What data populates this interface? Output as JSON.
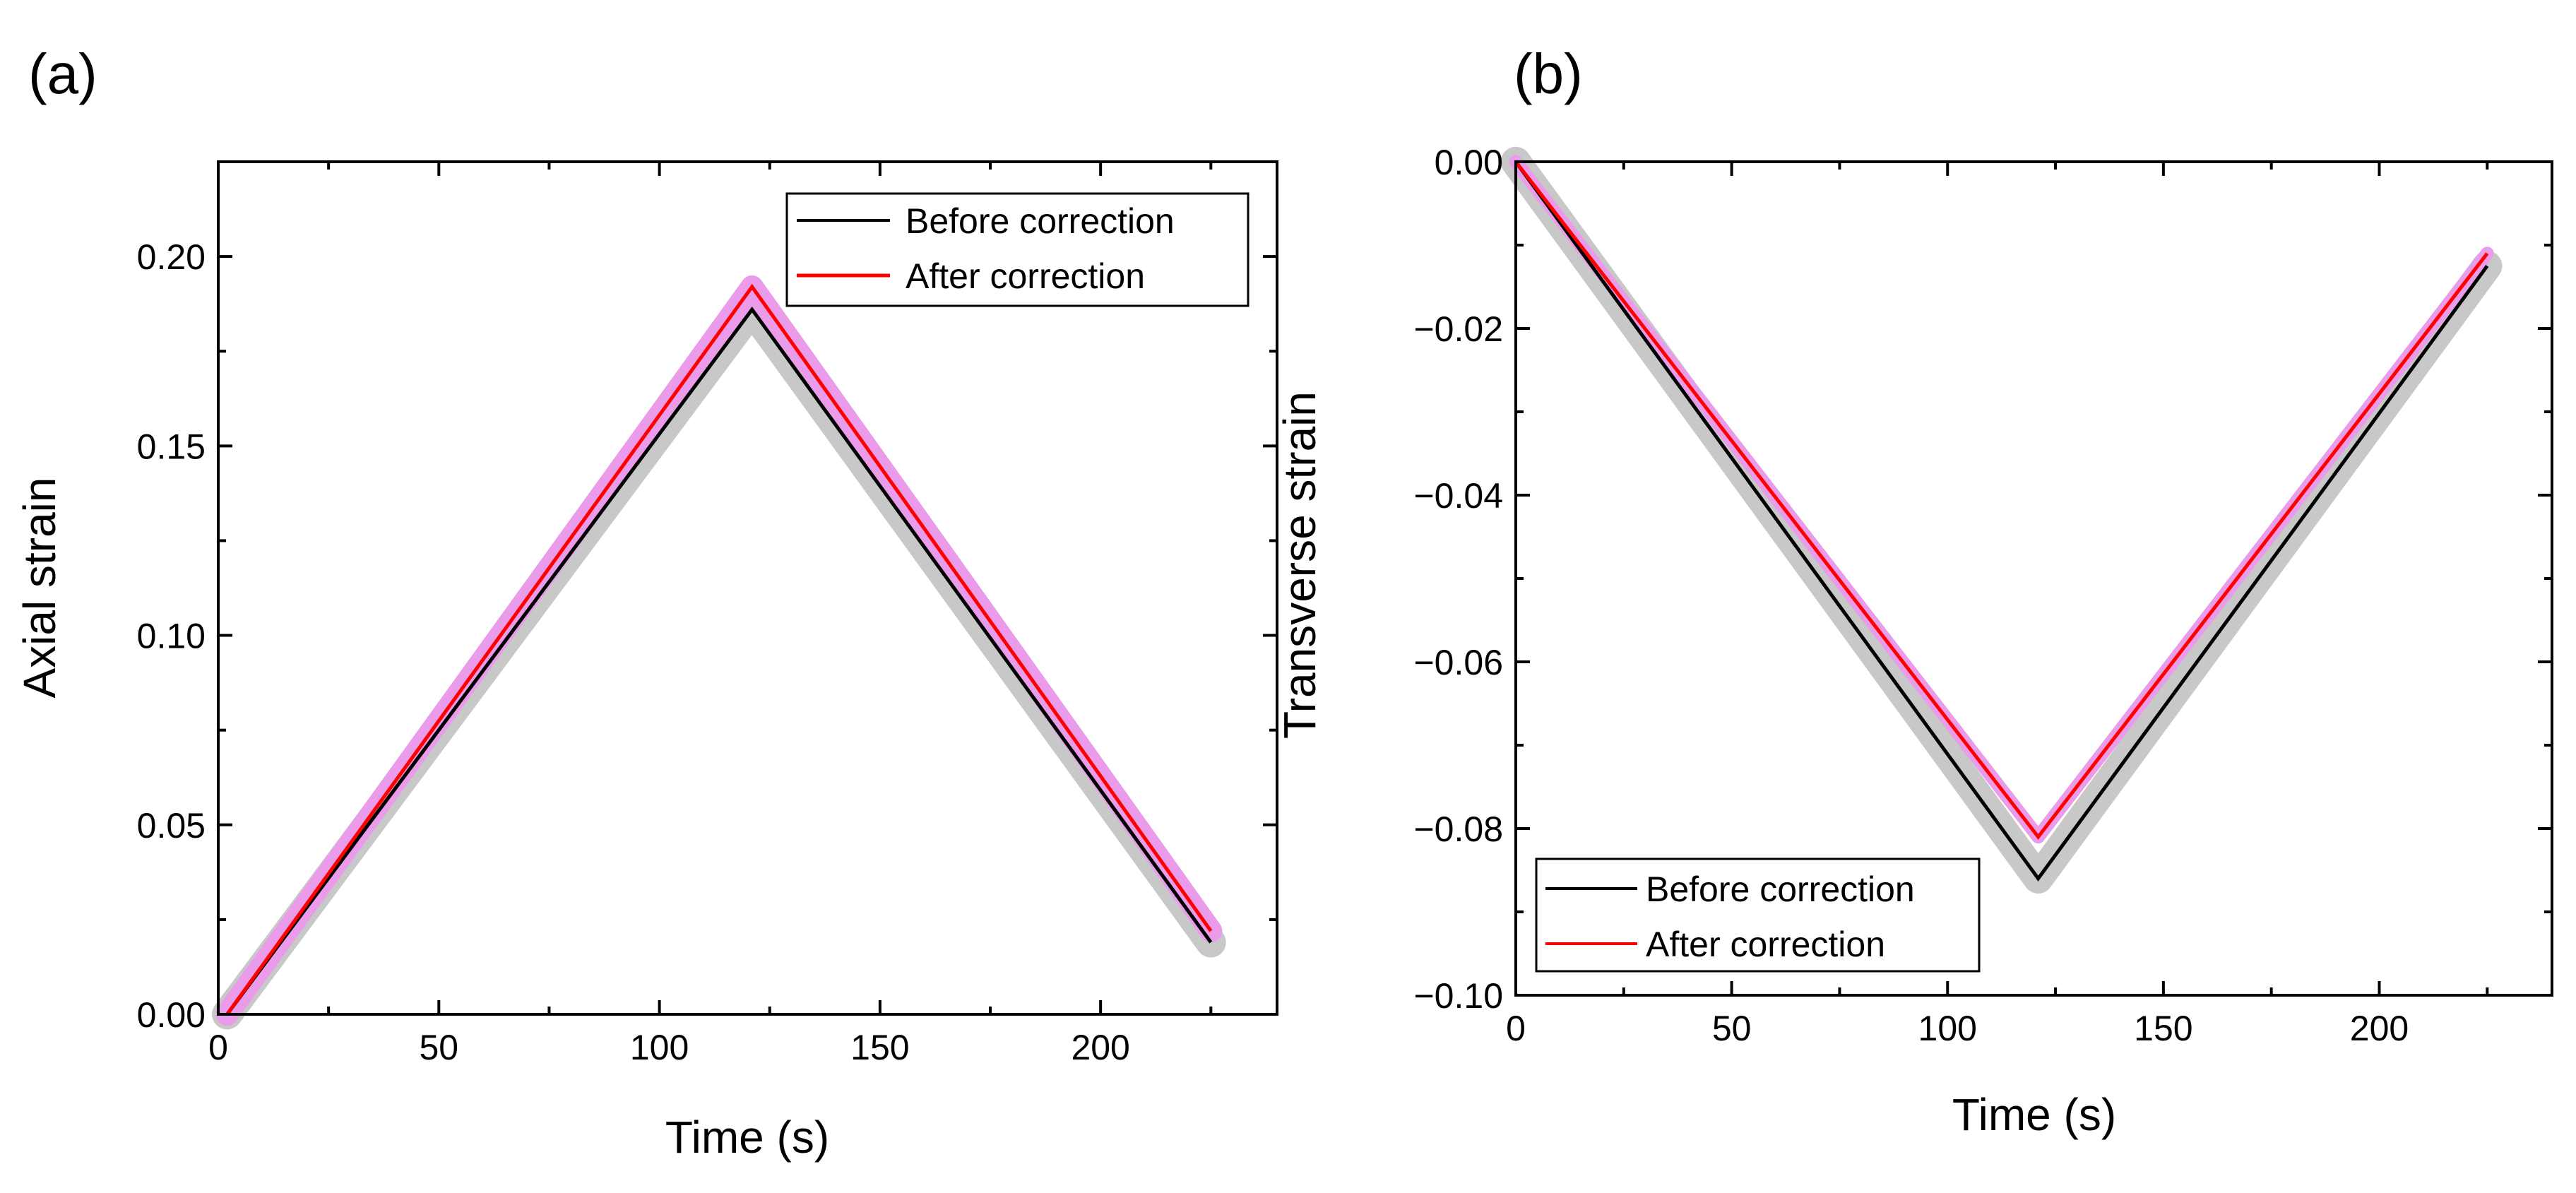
{
  "figure": {
    "panel_labels": [
      "(a)",
      "(b)"
    ]
  },
  "colors": {
    "before": "#000000",
    "after": "#ff0000",
    "before_band": "#c8c8c8",
    "after_band": "#ea9bea",
    "axes": "#000000"
  },
  "chart_data": [
    {
      "type": "line",
      "panel": "(a)",
      "title": "",
      "xlabel": "Time (s)",
      "ylabel": "Axial strain",
      "xlim": [
        0,
        240
      ],
      "ylim": [
        0,
        0.225
      ],
      "xticks": [
        0,
        50,
        100,
        150,
        200
      ],
      "xtick_labels": [
        "0",
        "50",
        "100",
        "150",
        "200"
      ],
      "yticks": [
        0,
        0.05,
        0.1,
        0.15,
        0.2
      ],
      "ytick_labels": [
        "0.00",
        "0.05",
        "0.10",
        "0.15",
        "0.20"
      ],
      "legend": {
        "position": "top-right",
        "entries": [
          "Before correction",
          "After correction"
        ]
      },
      "series": [
        {
          "name": "Before correction",
          "x": [
            2,
            121,
            225
          ],
          "y": [
            0,
            0.186,
            0.019
          ],
          "band": 0.004
        },
        {
          "name": "After correction",
          "x": [
            2,
            121,
            225
          ],
          "y": [
            0,
            0.192,
            0.022
          ],
          "band": 0.003
        }
      ]
    },
    {
      "type": "line",
      "panel": "(b)",
      "title": "",
      "xlabel": "Time (s)",
      "ylabel": "Transverse strain",
      "xlim": [
        0,
        240
      ],
      "ylim": [
        -0.1,
        0
      ],
      "xticks": [
        0,
        50,
        100,
        150,
        200
      ],
      "xtick_labels": [
        "0",
        "50",
        "100",
        "150",
        "200"
      ],
      "yticks": [
        0,
        -0.02,
        -0.04,
        -0.06,
        -0.08,
        -0.1
      ],
      "ytick_labels": [
        "0.00",
        "−0.02",
        "−0.04",
        "−0.06",
        "−0.08",
        "−0.10"
      ],
      "legend": {
        "position": "bottom-left",
        "entries": [
          "Before correction",
          "After correction"
        ]
      },
      "series": [
        {
          "name": "Before correction",
          "x": [
            0,
            121,
            225
          ],
          "y": [
            0,
            -0.086,
            -0.0125
          ],
          "band": 0.0018
        },
        {
          "name": "After correction",
          "x": [
            0,
            121,
            225
          ],
          "y": [
            0,
            -0.081,
            -0.011
          ],
          "band": 0.0008
        }
      ]
    }
  ]
}
